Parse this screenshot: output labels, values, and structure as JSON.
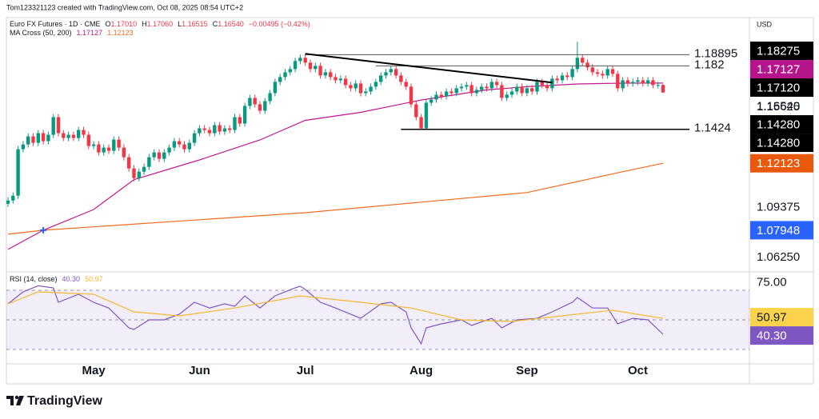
{
  "chart_data": {
    "type": "candlestick",
    "header": "Tom123321123 created with TradingView.com, Oct 08, 2025 08:54 UTC+2",
    "legend": {
      "symbol": "Euro FX Futures · 1D · CME",
      "ohlc": [
        {
          "key": "O",
          "value": "1.17010"
        },
        {
          "key": "H",
          "value": "1.17060"
        },
        {
          "key": "L",
          "value": "1.16515"
        },
        {
          "key": "C",
          "value": "1.16540"
        }
      ],
      "change": "−0.00495 (−0.42%)",
      "ma_title": "MA Cross (50, 200)",
      "ma_values": [
        "1.17127",
        "1.12123"
      ],
      "rsi_title": "RSI (14, close)",
      "rsi_values": [
        "40.30",
        "50.97"
      ]
    },
    "currency": "USD",
    "up_color": "#089981",
    "down_color": "#f23645",
    "ylim": [
      1.0535,
      1.2121
    ],
    "yticks": [
      {
        "value": 1.15625,
        "label": "1.15625"
      },
      {
        "value": 1.09375,
        "label": "1.09375"
      },
      {
        "value": 1.0625,
        "label": "1.06250"
      }
    ],
    "x_labels": [
      {
        "index": 17,
        "label": "May"
      },
      {
        "index": 38,
        "label": "Jun"
      },
      {
        "index": 59,
        "label": "Jul"
      },
      {
        "index": 82,
        "label": "Aug"
      },
      {
        "index": 103,
        "label": "Sep"
      },
      {
        "index": 125,
        "label": "Oct"
      }
    ],
    "candles": {
      "open": [
        1.096,
        1.098,
        1.101,
        1.13,
        1.133,
        1.138,
        1.134,
        1.14,
        1.135,
        1.139,
        1.15,
        1.14,
        1.137,
        1.139,
        1.137,
        1.142,
        1.139,
        1.132,
        1.133,
        1.128,
        1.131,
        1.129,
        1.136,
        1.131,
        1.125,
        1.118,
        1.112,
        1.116,
        1.119,
        1.125,
        1.128,
        1.124,
        1.128,
        1.131,
        1.135,
        1.133,
        1.13,
        1.134,
        1.14,
        1.143,
        1.142,
        1.14,
        1.145,
        1.141,
        1.143,
        1.142,
        1.15,
        1.146,
        1.157,
        1.162,
        1.158,
        1.154,
        1.16,
        1.165,
        1.172,
        1.175,
        1.178,
        1.18,
        1.185,
        1.187,
        1.184,
        1.18,
        1.182,
        1.176,
        1.178,
        1.175,
        1.173,
        1.174,
        1.17,
        1.168,
        1.171,
        1.165,
        1.166,
        1.169,
        1.172,
        1.176,
        1.178,
        1.18,
        1.176,
        1.172,
        1.169,
        1.158,
        1.15,
        1.143,
        1.159,
        1.161,
        1.164,
        1.163,
        1.166,
        1.165,
        1.168,
        1.169,
        1.17,
        1.165,
        1.167,
        1.169,
        1.168,
        1.172,
        1.17,
        1.162,
        1.164,
        1.166,
        1.169,
        1.165,
        1.168,
        1.166,
        1.172,
        1.17,
        1.168,
        1.174,
        1.173,
        1.176,
        1.175,
        1.18,
        1.187,
        1.184,
        1.181,
        1.178,
        1.177,
        1.176,
        1.18,
        1.177,
        1.168,
        1.173,
        1.171,
        1.172,
        1.173,
        1.171,
        1.173,
        1.17,
        1.1701
      ],
      "high": [
        1.1,
        1.103,
        1.132,
        1.135,
        1.14,
        1.14,
        1.142,
        1.142,
        1.141,
        1.152,
        1.152,
        1.142,
        1.141,
        1.141,
        1.144,
        1.144,
        1.141,
        1.135,
        1.135,
        1.133,
        1.133,
        1.138,
        1.138,
        1.133,
        1.127,
        1.12,
        1.118,
        1.121,
        1.127,
        1.13,
        1.13,
        1.13,
        1.133,
        1.137,
        1.137,
        1.135,
        1.136,
        1.142,
        1.145,
        1.145,
        1.144,
        1.147,
        1.147,
        1.145,
        1.145,
        1.152,
        1.152,
        1.159,
        1.164,
        1.164,
        1.16,
        1.162,
        1.167,
        1.174,
        1.177,
        1.18,
        1.182,
        1.187,
        1.189,
        1.1895,
        1.186,
        1.184,
        1.184,
        1.18,
        1.18,
        1.177,
        1.176,
        1.176,
        1.172,
        1.173,
        1.173,
        1.168,
        1.171,
        1.174,
        1.178,
        1.18,
        1.182,
        1.182,
        1.178,
        1.174,
        1.171,
        1.16,
        1.152,
        1.161,
        1.163,
        1.166,
        1.166,
        1.168,
        1.168,
        1.17,
        1.171,
        1.172,
        1.172,
        1.169,
        1.171,
        1.171,
        1.174,
        1.174,
        1.172,
        1.166,
        1.168,
        1.171,
        1.171,
        1.17,
        1.17,
        1.174,
        1.174,
        1.172,
        1.176,
        1.176,
        1.178,
        1.178,
        1.182,
        1.197,
        1.189,
        1.186,
        1.183,
        1.18,
        1.179,
        1.182,
        1.182,
        1.179,
        1.175,
        1.175,
        1.174,
        1.175,
        1.175,
        1.175,
        1.175,
        1.172,
        1.1706
      ],
      "low": [
        1.094,
        1.096,
        1.099,
        1.128,
        1.131,
        1.132,
        1.132,
        1.133,
        1.133,
        1.137,
        1.138,
        1.135,
        1.135,
        1.135,
        1.135,
        1.137,
        1.13,
        1.13,
        1.126,
        1.126,
        1.127,
        1.127,
        1.129,
        1.123,
        1.116,
        1.11,
        1.11,
        1.114,
        1.117,
        1.123,
        1.122,
        1.122,
        1.126,
        1.129,
        1.131,
        1.128,
        1.128,
        1.132,
        1.138,
        1.14,
        1.138,
        1.138,
        1.139,
        1.139,
        1.14,
        1.14,
        1.144,
        1.144,
        1.155,
        1.156,
        1.152,
        1.152,
        1.158,
        1.163,
        1.17,
        1.173,
        1.176,
        1.178,
        1.183,
        1.182,
        1.178,
        1.178,
        1.174,
        1.174,
        1.173,
        1.171,
        1.171,
        1.168,
        1.166,
        1.166,
        1.163,
        1.163,
        1.164,
        1.167,
        1.17,
        1.174,
        1.176,
        1.174,
        1.17,
        1.167,
        1.156,
        1.148,
        1.1424,
        1.1425,
        1.157,
        1.159,
        1.161,
        1.161,
        1.163,
        1.163,
        1.166,
        1.167,
        1.163,
        1.163,
        1.165,
        1.166,
        1.166,
        1.168,
        1.16,
        1.16,
        1.162,
        1.164,
        1.163,
        1.163,
        1.164,
        1.164,
        1.168,
        1.166,
        1.166,
        1.171,
        1.171,
        1.173,
        1.173,
        1.178,
        1.182,
        1.179,
        1.176,
        1.175,
        1.174,
        1.174,
        1.175,
        1.166,
        1.166,
        1.169,
        1.169,
        1.17,
        1.169,
        1.169,
        1.168,
        1.168,
        1.16515
      ],
      "close": [
        1.098,
        1.101,
        1.13,
        1.133,
        1.138,
        1.134,
        1.14,
        1.135,
        1.139,
        1.15,
        1.14,
        1.137,
        1.139,
        1.137,
        1.142,
        1.139,
        1.132,
        1.133,
        1.128,
        1.131,
        1.129,
        1.136,
        1.131,
        1.125,
        1.118,
        1.112,
        1.116,
        1.119,
        1.125,
        1.128,
        1.124,
        1.128,
        1.131,
        1.135,
        1.133,
        1.13,
        1.134,
        1.14,
        1.143,
        1.142,
        1.14,
        1.145,
        1.141,
        1.143,
        1.142,
        1.15,
        1.146,
        1.157,
        1.162,
        1.158,
        1.154,
        1.16,
        1.165,
        1.172,
        1.175,
        1.178,
        1.18,
        1.185,
        1.187,
        1.184,
        1.18,
        1.182,
        1.176,
        1.178,
        1.175,
        1.173,
        1.174,
        1.17,
        1.168,
        1.171,
        1.165,
        1.166,
        1.169,
        1.172,
        1.176,
        1.178,
        1.18,
        1.176,
        1.172,
        1.169,
        1.158,
        1.15,
        1.143,
        1.159,
        1.161,
        1.164,
        1.163,
        1.166,
        1.165,
        1.168,
        1.169,
        1.17,
        1.165,
        1.167,
        1.169,
        1.168,
        1.172,
        1.17,
        1.162,
        1.164,
        1.166,
        1.169,
        1.165,
        1.168,
        1.166,
        1.172,
        1.17,
        1.168,
        1.174,
        1.173,
        1.176,
        1.175,
        1.18,
        1.187,
        1.184,
        1.181,
        1.178,
        1.177,
        1.176,
        1.18,
        1.177,
        1.168,
        1.173,
        1.171,
        1.172,
        1.173,
        1.171,
        1.173,
        1.17,
        1.1701,
        1.1654
      ]
    },
    "ma_series": [
      {
        "color": "#c2188f",
        "x": [
          0,
          7,
          17,
          25,
          38,
          50,
          59,
          70,
          82,
          95,
          103,
          113,
          122,
          130
        ],
        "values": [
          1.0675,
          1.0795,
          1.0924,
          1.111,
          1.1233,
          1.1358,
          1.148,
          1.153,
          1.1607,
          1.167,
          1.169,
          1.1707,
          1.1712,
          1.17127
        ]
      },
      {
        "color": "#f26b1d",
        "x": [
          0,
          7,
          38,
          59,
          82,
          103,
          122,
          130
        ],
        "values": [
          1.077,
          1.0795,
          1.086,
          1.0904,
          1.097,
          1.103,
          1.116,
          1.12123
        ]
      }
    ],
    "levels": [
      {
        "value": 1.18895,
        "start": 59,
        "color": "#555555"
      },
      {
        "value": 1.182,
        "start": 73,
        "color": "#555555"
      },
      {
        "value": 1.1424,
        "start": 78,
        "color": "#000000"
      }
    ],
    "trendline": {
      "color": "#000000",
      "x": [
        59,
        108
      ],
      "values": [
        1.1895,
        1.1716
      ]
    },
    "price_labels": [
      {
        "value": 1.18275,
        "label": "1.18275",
        "bg": "#000000",
        "fg": "#ffffff"
      },
      {
        "value": 1.17127,
        "label": "1.17127",
        "bg": "#b5158a",
        "fg": "#ffffff"
      },
      {
        "value": 1.1712,
        "label": "1.17120",
        "bg": "#000000",
        "fg": "#ffffff"
      },
      {
        "value": 1.1654,
        "label": "1.16540",
        "bg": null,
        "fg": "#131722"
      },
      {
        "value": 1.1428,
        "label": "1.14280",
        "bg": "#000000",
        "fg": "#ffffff"
      },
      {
        "value": 1.1428,
        "label": "1.14280",
        "bg": "#000000",
        "fg": "#ffffff"
      },
      {
        "value": 1.12123,
        "label": "1.12123",
        "bg": "#e8590c",
        "fg": "#ffffff"
      },
      {
        "value": 1.07948,
        "label": "1.07948",
        "bg": "#2962ff",
        "fg": "#ffffff",
        "marker_x": 7
      }
    ],
    "rsi": {
      "ylim": [
        20.3,
        82.4
      ],
      "yticks": [
        {
          "value": 75,
          "label": "75.00"
        }
      ],
      "levels": [
        70,
        50,
        30
      ],
      "band_color": "rgba(126,87,194,0.10)",
      "series": [
        {
          "color": "#7e57c2",
          "x": [
            0,
            3,
            6,
            9,
            10,
            14,
            17,
            20,
            24,
            25,
            28,
            31,
            34,
            37,
            40,
            43,
            45,
            47,
            50,
            53,
            57,
            58,
            59,
            62,
            65,
            70,
            74,
            76,
            79,
            80,
            82,
            83,
            86,
            90,
            92,
            96,
            98,
            101,
            105,
            108,
            112,
            113,
            116,
            119,
            121,
            124,
            127,
            130
          ],
          "values": [
            60.8,
            68.9,
            73,
            71.6,
            61.9,
            67.3,
            61.9,
            58,
            44.6,
            43.5,
            50,
            50,
            53.8,
            61.9,
            58,
            60.8,
            59.2,
            66.2,
            58,
            66.2,
            71.6,
            72.7,
            70.5,
            61.9,
            58,
            51,
            60.8,
            61.9,
            55.4,
            44.6,
            33.8,
            44.6,
            47.3,
            50,
            46.2,
            51,
            44.6,
            50,
            51,
            55.4,
            61.9,
            65.1,
            58,
            58,
            47.3,
            51,
            50,
            40.3
          ]
        },
        {
          "color": "#f5b82e",
          "x": [
            0,
            6,
            17,
            25,
            34,
            45,
            58,
            70,
            80,
            90,
            100,
            110,
            120,
            130
          ],
          "values": [
            60.8,
            68.9,
            67.3,
            55.4,
            52.7,
            58,
            66.2,
            61.9,
            58,
            50,
            48.9,
            52.7,
            56.5,
            50.97
          ]
        }
      ],
      "value_labels": [
        {
          "value": 50.97,
          "label": "50.97",
          "bg": "#fbd24b",
          "fg": "#131722"
        },
        {
          "value": 40.3,
          "label": "40.30",
          "bg": "#7e57c2",
          "fg": "#ffffff"
        }
      ]
    },
    "brand": "TradingView"
  }
}
